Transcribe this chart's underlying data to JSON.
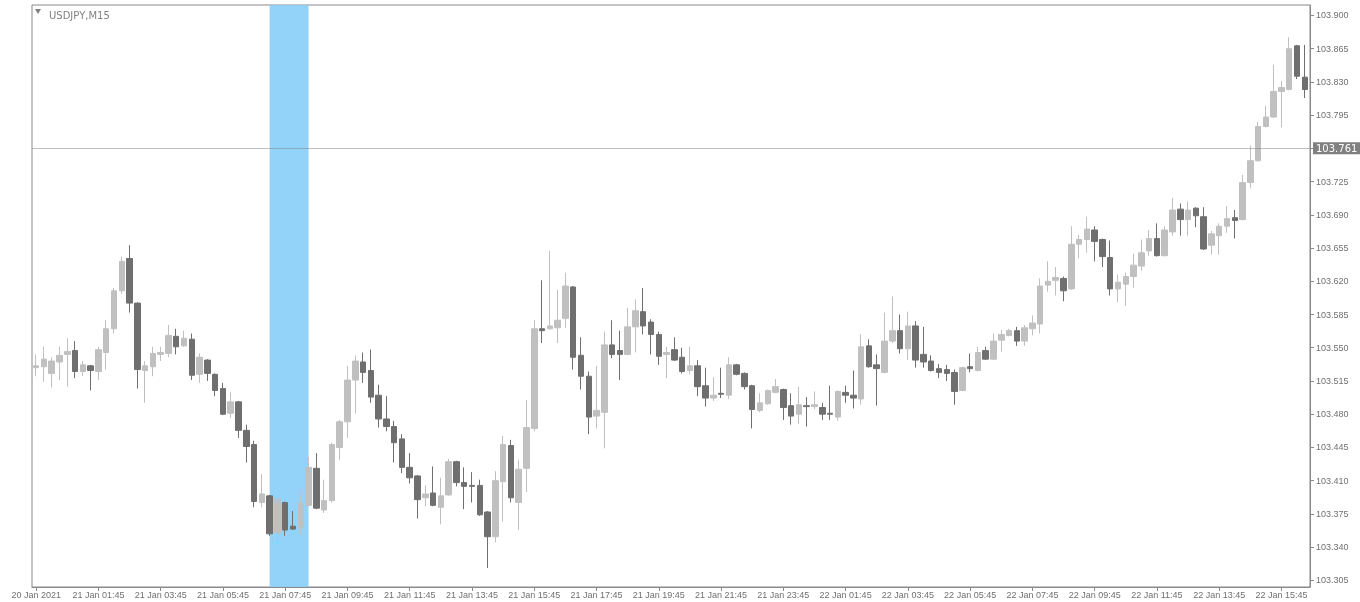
{
  "chart_data": {
    "type": "candlestick",
    "title": "USDJPY,M15",
    "x": [
      "2021-01-20T23:45",
      "2021-01-21T00:00",
      "2021-01-21T00:15",
      "2021-01-21T00:30",
      "2021-01-21T00:45",
      "2021-01-21T01:00",
      "2021-01-21T01:15",
      "2021-01-21T01:30",
      "2021-01-21T01:45",
      "2021-01-21T02:00",
      "2021-01-21T02:15",
      "2021-01-21T02:30",
      "2021-01-21T02:45",
      "2021-01-21T03:00",
      "2021-01-21T03:15",
      "2021-01-21T03:30",
      "2021-01-21T03:45",
      "2021-01-21T04:00",
      "2021-01-21T04:15",
      "2021-01-21T04:30",
      "2021-01-21T04:45",
      "2021-01-21T05:00",
      "2021-01-21T05:15",
      "2021-01-21T05:30",
      "2021-01-21T05:45",
      "2021-01-21T06:00",
      "2021-01-21T06:15",
      "2021-01-21T06:30",
      "2021-01-21T06:45",
      "2021-01-21T07:00",
      "2021-01-21T07:15",
      "2021-01-21T07:30",
      "2021-01-21T07:45",
      "2021-01-21T08:00",
      "2021-01-21T08:15",
      "2021-01-21T08:30",
      "2021-01-21T08:45",
      "2021-01-21T09:00",
      "2021-01-21T09:15",
      "2021-01-21T09:30",
      "2021-01-21T09:45",
      "2021-01-21T10:00",
      "2021-01-21T10:15",
      "2021-01-21T10:30",
      "2021-01-21T10:45",
      "2021-01-21T11:00",
      "2021-01-21T11:15",
      "2021-01-21T11:30",
      "2021-01-21T11:45",
      "2021-01-21T12:00",
      "2021-01-21T12:15",
      "2021-01-21T12:30",
      "2021-01-21T12:45",
      "2021-01-21T13:00",
      "2021-01-21T13:15",
      "2021-01-21T13:30",
      "2021-01-21T13:45",
      "2021-01-21T14:00",
      "2021-01-21T14:15",
      "2021-01-21T14:30",
      "2021-01-21T14:45",
      "2021-01-21T15:00",
      "2021-01-21T15:15",
      "2021-01-21T15:30",
      "2021-01-21T15:45",
      "2021-01-21T16:00",
      "2021-01-21T16:15",
      "2021-01-21T16:30",
      "2021-01-21T16:45",
      "2021-01-21T17:00",
      "2021-01-21T17:15",
      "2021-01-21T17:30",
      "2021-01-21T17:45",
      "2021-01-21T18:00",
      "2021-01-21T18:15",
      "2021-01-21T18:30",
      "2021-01-21T18:45",
      "2021-01-21T19:00",
      "2021-01-21T19:15",
      "2021-01-21T19:30",
      "2021-01-21T19:45",
      "2021-01-21T20:00",
      "2021-01-21T20:15",
      "2021-01-21T20:30",
      "2021-01-21T20:45",
      "2021-01-21T21:00",
      "2021-01-21T21:15",
      "2021-01-21T21:30",
      "2021-01-21T21:45",
      "2021-01-21T22:00",
      "2021-01-21T22:15",
      "2021-01-21T22:30",
      "2021-01-21T22:45",
      "2021-01-21T23:00",
      "2021-01-21T23:15",
      "2021-01-21T23:30",
      "2021-01-21T23:45",
      "2021-01-22T00:00",
      "2021-01-22T00:15",
      "2021-01-22T00:30",
      "2021-01-22T00:45",
      "2021-01-22T01:00",
      "2021-01-22T01:15",
      "2021-01-22T01:30",
      "2021-01-22T01:45",
      "2021-01-22T02:00",
      "2021-01-22T02:15",
      "2021-01-22T02:30",
      "2021-01-22T02:45",
      "2021-01-22T03:00",
      "2021-01-22T03:15",
      "2021-01-22T03:30",
      "2021-01-22T03:45",
      "2021-01-22T04:00",
      "2021-01-22T04:15",
      "2021-01-22T04:30",
      "2021-01-22T04:45",
      "2021-01-22T05:00",
      "2021-01-22T05:15",
      "2021-01-22T05:30",
      "2021-01-22T05:45",
      "2021-01-22T06:00",
      "2021-01-22T06:15",
      "2021-01-22T06:30",
      "2021-01-22T06:45",
      "2021-01-22T07:00",
      "2021-01-22T07:15",
      "2021-01-22T07:30",
      "2021-01-22T07:45",
      "2021-01-22T08:00",
      "2021-01-22T08:15",
      "2021-01-22T08:30",
      "2021-01-22T08:45",
      "2021-01-22T09:00",
      "2021-01-22T09:15",
      "2021-01-22T09:30",
      "2021-01-22T09:45",
      "2021-01-22T10:00",
      "2021-01-22T10:15",
      "2021-01-22T10:30",
      "2021-01-22T10:45",
      "2021-01-22T11:00",
      "2021-01-22T11:15",
      "2021-01-22T11:30",
      "2021-01-22T11:45",
      "2021-01-22T12:00",
      "2021-01-22T12:15",
      "2021-01-22T12:30",
      "2021-01-22T12:45",
      "2021-01-22T13:00",
      "2021-01-22T13:15",
      "2021-01-22T13:30",
      "2021-01-22T13:45",
      "2021-01-22T14:00",
      "2021-01-22T14:15",
      "2021-01-22T14:30",
      "2021-01-22T14:45",
      "2021-01-22T15:00",
      "2021-01-22T15:15",
      "2021-01-22T15:30",
      "2021-01-22T15:45",
      "2021-01-22T16:00",
      "2021-01-22T16:15",
      "2021-01-22T16:30"
    ],
    "ohlc": [
      [
        103.529,
        103.543,
        103.52,
        103.531
      ],
      [
        103.53,
        103.551,
        103.514,
        103.538
      ],
      [
        103.523,
        103.54,
        103.508,
        103.536
      ],
      [
        103.535,
        103.551,
        103.516,
        103.542
      ],
      [
        103.543,
        103.56,
        103.509,
        103.546
      ],
      [
        103.547,
        103.557,
        103.518,
        103.525
      ],
      [
        103.525,
        103.536,
        103.52,
        103.532
      ],
      [
        103.531,
        103.532,
        103.505,
        103.526
      ],
      [
        103.525,
        103.551,
        103.516,
        103.548
      ],
      [
        103.545,
        103.579,
        103.527,
        103.57
      ],
      [
        103.57,
        103.613,
        103.565,
        103.61
      ],
      [
        103.61,
        103.646,
        103.607,
        103.641
      ],
      [
        103.644,
        103.658,
        103.587,
        103.597
      ],
      [
        103.597,
        103.598,
        103.507,
        103.527
      ],
      [
        103.526,
        103.536,
        103.492,
        103.531
      ],
      [
        103.53,
        103.551,
        103.52,
        103.544
      ],
      [
        103.543,
        103.551,
        103.536,
        103.545
      ],
      [
        103.544,
        103.574,
        103.54,
        103.563
      ],
      [
        103.562,
        103.57,
        103.543,
        103.551
      ],
      [
        103.552,
        103.568,
        103.551,
        103.56
      ],
      [
        103.559,
        103.565,
        103.516,
        103.521
      ],
      [
        103.522,
        103.544,
        103.513,
        103.54
      ],
      [
        103.537,
        103.538,
        103.515,
        103.523
      ],
      [
        103.522,
        103.523,
        103.499,
        103.505
      ],
      [
        103.507,
        103.513,
        103.479,
        103.48
      ],
      [
        103.481,
        103.503,
        103.476,
        103.493
      ],
      [
        103.493,
        103.494,
        103.455,
        103.463
      ],
      [
        103.463,
        103.469,
        103.429,
        103.446
      ],
      [
        103.448,
        103.452,
        103.382,
        103.388
      ],
      [
        103.387,
        103.417,
        103.382,
        103.396
      ],
      [
        103.394,
        103.395,
        103.352,
        103.354
      ],
      [
        103.355,
        103.392,
        103.346,
        103.39
      ],
      [
        103.387,
        103.388,
        103.352,
        103.358
      ],
      [
        103.362,
        103.378,
        103.358,
        103.359
      ],
      [
        103.361,
        103.398,
        103.355,
        103.386
      ],
      [
        103.384,
        103.435,
        103.383,
        103.424
      ],
      [
        103.423,
        103.439,
        103.38,
        103.381
      ],
      [
        103.379,
        103.411,
        103.376,
        103.389
      ],
      [
        103.389,
        103.45,
        103.387,
        103.448
      ],
      [
        103.445,
        103.474,
        103.432,
        103.472
      ],
      [
        103.472,
        103.531,
        103.455,
        103.516
      ],
      [
        103.516,
        103.542,
        103.481,
        103.536
      ],
      [
        103.535,
        103.545,
        103.513,
        103.524
      ],
      [
        103.526,
        103.548,
        103.492,
        103.498
      ],
      [
        103.5,
        103.511,
        103.466,
        103.475
      ],
      [
        103.475,
        103.499,
        103.462,
        103.467
      ],
      [
        103.467,
        103.473,
        103.429,
        103.45
      ],
      [
        103.454,
        103.459,
        103.418,
        103.424
      ],
      [
        103.424,
        103.439,
        103.407,
        103.413
      ],
      [
        103.415,
        103.416,
        103.37,
        103.39
      ],
      [
        103.392,
        103.405,
        103.383,
        103.396
      ],
      [
        103.397,
        103.425,
        103.383,
        103.384
      ],
      [
        103.382,
        103.413,
        103.364,
        103.394
      ],
      [
        103.395,
        103.433,
        103.394,
        103.43
      ],
      [
        103.43,
        103.431,
        103.404,
        103.408
      ],
      [
        103.408,
        103.424,
        103.38,
        103.404
      ],
      [
        103.405,
        103.419,
        103.387,
        103.404
      ],
      [
        103.405,
        103.411,
        103.373,
        103.374
      ],
      [
        103.377,
        103.378,
        103.318,
        103.351
      ],
      [
        103.351,
        103.42,
        103.345,
        103.41
      ],
      [
        103.409,
        103.457,
        103.367,
        103.448
      ],
      [
        103.447,
        103.453,
        103.387,
        103.392
      ],
      [
        103.387,
        103.432,
        103.358,
        103.422
      ],
      [
        103.423,
        103.495,
        103.398,
        103.466
      ],
      [
        103.465,
        103.579,
        103.462,
        103.57
      ],
      [
        103.57,
        103.621,
        103.555,
        103.568
      ],
      [
        103.57,
        103.652,
        103.569,
        103.573
      ],
      [
        103.571,
        103.611,
        103.555,
        103.579
      ],
      [
        103.581,
        103.629,
        103.571,
        103.615
      ],
      [
        103.614,
        103.615,
        103.527,
        103.54
      ],
      [
        103.542,
        103.561,
        103.506,
        103.52
      ],
      [
        103.52,
        103.525,
        103.459,
        103.477
      ],
      [
        103.478,
        103.531,
        103.465,
        103.484
      ],
      [
        103.482,
        103.567,
        103.444,
        103.553
      ],
      [
        103.553,
        103.579,
        103.539,
        103.543
      ],
      [
        103.547,
        103.568,
        103.516,
        103.543
      ],
      [
        103.543,
        103.592,
        103.542,
        103.572
      ],
      [
        103.572,
        103.601,
        103.545,
        103.589
      ],
      [
        103.588,
        103.613,
        103.564,
        103.573
      ],
      [
        103.577,
        103.58,
        103.543,
        103.564
      ],
      [
        103.564,
        103.567,
        103.532,
        103.541
      ],
      [
        103.543,
        103.551,
        103.518,
        103.545
      ],
      [
        103.548,
        103.561,
        103.536,
        103.537
      ],
      [
        103.54,
        103.55,
        103.523,
        103.525
      ],
      [
        103.526,
        103.551,
        103.522,
        103.531
      ],
      [
        103.531,
        103.537,
        103.499,
        103.509
      ],
      [
        103.51,
        103.529,
        103.488,
        103.497
      ],
      [
        103.497,
        103.519,
        103.494,
        103.5
      ],
      [
        103.502,
        103.529,
        103.497,
        103.501
      ],
      [
        103.5,
        103.54,
        103.496,
        103.532
      ],
      [
        103.532,
        103.533,
        103.521,
        103.522
      ],
      [
        103.523,
        103.524,
        103.506,
        103.509
      ],
      [
        103.51,
        103.511,
        103.465,
        103.485
      ],
      [
        103.484,
        103.502,
        103.482,
        103.492
      ],
      [
        103.491,
        103.506,
        103.49,
        103.505
      ],
      [
        103.503,
        103.517,
        103.502,
        103.509
      ],
      [
        103.506,
        103.507,
        103.474,
        103.487
      ],
      [
        103.489,
        103.502,
        103.469,
        103.478
      ],
      [
        103.48,
        103.509,
        103.47,
        103.49
      ],
      [
        103.489,
        103.498,
        103.467,
        103.488
      ],
      [
        103.488,
        103.504,
        103.485,
        103.49
      ],
      [
        103.487,
        103.492,
        103.474,
        103.48
      ],
      [
        103.481,
        103.51,
        103.474,
        103.48
      ],
      [
        103.477,
        103.505,
        103.473,
        103.504
      ],
      [
        103.503,
        103.51,
        103.492,
        103.5
      ],
      [
        103.5,
        103.526,
        103.486,
        103.497
      ],
      [
        103.496,
        103.564,
        103.49,
        103.551
      ],
      [
        103.552,
        103.559,
        103.529,
        103.53
      ],
      [
        103.532,
        103.543,
        103.489,
        103.528
      ],
      [
        103.524,
        103.587,
        103.523,
        103.557
      ],
      [
        103.557,
        103.604,
        103.555,
        103.568
      ],
      [
        103.568,
        103.585,
        103.544,
        103.549
      ],
      [
        103.549,
        103.588,
        103.537,
        103.573
      ],
      [
        103.573,
        103.578,
        103.529,
        103.537
      ],
      [
        103.543,
        103.572,
        103.529,
        103.535
      ],
      [
        103.536,
        103.542,
        103.525,
        103.526
      ],
      [
        103.528,
        103.533,
        103.518,
        103.524
      ],
      [
        103.527,
        103.532,
        103.515,
        103.523
      ],
      [
        103.524,
        103.527,
        103.49,
        103.504
      ],
      [
        103.505,
        103.53,
        103.504,
        103.529
      ],
      [
        103.53,
        103.544,
        103.524,
        103.528
      ],
      [
        103.526,
        103.551,
        103.525,
        103.545
      ],
      [
        103.547,
        103.551,
        103.537,
        103.538
      ],
      [
        103.538,
        103.565,
        103.537,
        103.557
      ],
      [
        103.558,
        103.569,
        103.546,
        103.564
      ],
      [
        103.563,
        103.57,
        103.562,
        103.568
      ],
      [
        103.568,
        103.572,
        103.552,
        103.557
      ],
      [
        103.557,
        103.574,
        103.552,
        103.571
      ],
      [
        103.57,
        103.584,
        103.563,
        103.576
      ],
      [
        103.575,
        103.623,
        103.565,
        103.615
      ],
      [
        103.616,
        103.641,
        103.609,
        103.62
      ],
      [
        103.621,
        103.635,
        103.605,
        103.624
      ],
      [
        103.623,
        103.625,
        103.599,
        103.61
      ],
      [
        103.612,
        103.678,
        103.611,
        103.659
      ],
      [
        103.659,
        103.669,
        103.644,
        103.664
      ],
      [
        103.664,
        103.688,
        103.65,
        103.675
      ],
      [
        103.674,
        103.678,
        103.641,
        103.662
      ],
      [
        103.664,
        103.665,
        103.635,
        103.646
      ],
      [
        103.645,
        103.663,
        103.605,
        103.612
      ],
      [
        103.612,
        103.627,
        103.598,
        103.619
      ],
      [
        103.617,
        103.629,
        103.594,
        103.625
      ],
      [
        103.625,
        103.649,
        103.613,
        103.637
      ],
      [
        103.636,
        103.664,
        103.631,
        103.65
      ],
      [
        103.652,
        103.674,
        103.647,
        103.665
      ],
      [
        103.665,
        103.681,
        103.646,
        103.647
      ],
      [
        103.647,
        103.678,
        103.646,
        103.674
      ],
      [
        103.672,
        103.708,
        103.668,
        103.695
      ],
      [
        103.696,
        103.702,
        103.668,
        103.685
      ],
      [
        103.685,
        103.704,
        103.668,
        103.695
      ],
      [
        103.697,
        103.698,
        103.677,
        103.689
      ],
      [
        103.688,
        103.698,
        103.653,
        103.654
      ],
      [
        103.658,
        103.673,
        103.648,
        103.67
      ],
      [
        103.668,
        103.681,
        103.648,
        103.678
      ],
      [
        103.678,
        103.699,
        103.671,
        103.686
      ],
      [
        103.687,
        103.695,
        103.665,
        103.684
      ],
      [
        103.685,
        103.732,
        103.684,
        103.724
      ],
      [
        103.724,
        103.763,
        103.718,
        103.747
      ],
      [
        103.747,
        103.788,
        103.746,
        103.783
      ],
      [
        103.783,
        103.805,
        103.782,
        103.793
      ],
      [
        103.793,
        103.848,
        103.792,
        103.82
      ],
      [
        103.82,
        103.831,
        103.782,
        103.824
      ],
      [
        103.822,
        103.877,
        103.821,
        103.865
      ],
      [
        103.868,
        103.869,
        103.833,
        103.836
      ],
      [
        103.835,
        103.869,
        103.813,
        103.822
      ]
    ],
    "xlim": [
      "2021-01-20T23:37",
      "2021-01-22T16:40"
    ],
    "xticks": [
      {
        "value": "2021-01-20T23:45",
        "label": "20 Jan 2021"
      },
      {
        "value": "2021-01-21T01:45",
        "label": "21 Jan 01:45"
      },
      {
        "value": "2021-01-21T03:45",
        "label": "21 Jan 03:45"
      },
      {
        "value": "2021-01-21T05:45",
        "label": "21 Jan 05:45"
      },
      {
        "value": "2021-01-21T07:45",
        "label": "21 Jan 07:45"
      },
      {
        "value": "2021-01-21T09:45",
        "label": "21 Jan 09:45"
      },
      {
        "value": "2021-01-21T11:45",
        "label": "21 Jan 11:45"
      },
      {
        "value": "2021-01-21T13:45",
        "label": "21 Jan 13:45"
      },
      {
        "value": "2021-01-21T15:45",
        "label": "21 Jan 15:45"
      },
      {
        "value": "2021-01-21T17:45",
        "label": "21 Jan 17:45"
      },
      {
        "value": "2021-01-21T19:45",
        "label": "21 Jan 19:45"
      },
      {
        "value": "2021-01-21T21:45",
        "label": "21 Jan 21:45"
      },
      {
        "value": "2021-01-21T23:45",
        "label": "21 Jan 23:45"
      },
      {
        "value": "2021-01-22T01:45",
        "label": "22 Jan 01:45"
      },
      {
        "value": "2021-01-22T03:45",
        "label": "22 Jan 03:45"
      },
      {
        "value": "2021-01-22T05:45",
        "label": "22 Jan 05:45"
      },
      {
        "value": "2021-01-22T07:45",
        "label": "22 Jan 07:45"
      },
      {
        "value": "2021-01-22T09:45",
        "label": "22 Jan 09:45"
      },
      {
        "value": "2021-01-22T11:45",
        "label": "22 Jan 11:45"
      },
      {
        "value": "2021-01-22T13:45",
        "label": "22 Jan 13:45"
      },
      {
        "value": "2021-01-22T15:45",
        "label": "22 Jan 15:45"
      }
    ],
    "ylim": [
      103.298,
      103.911
    ],
    "yticks": [
      103.305,
      {
        "value": 103.34,
        "label": "103.340"
      },
      103.375,
      {
        "value": 103.41,
        "label": "103.410"
      },
      103.445,
      {
        "value": 103.48,
        "label": "103.480"
      },
      103.515,
      {
        "value": 103.55,
        "label": "103.550"
      },
      103.585,
      {
        "value": 103.62,
        "label": "103.620"
      },
      103.655,
      {
        "value": 103.69,
        "label": "103.690"
      },
      103.725,
      {
        "value": 103.76,
        "label": null
      },
      103.795,
      {
        "value": 103.83,
        "label": "103.830"
      },
      103.865,
      {
        "value": 103.9,
        "label": "103.900"
      }
    ],
    "ref_lines": [
      {
        "axis": "y",
        "value": 103.761,
        "label": "103.761",
        "color": "#808080"
      }
    ],
    "bands": [
      {
        "axis": "x",
        "from": "2021-01-21T07:15",
        "to": "2021-01-21T08:30",
        "color": "#87cefa"
      }
    ],
    "grid": false
  }
}
